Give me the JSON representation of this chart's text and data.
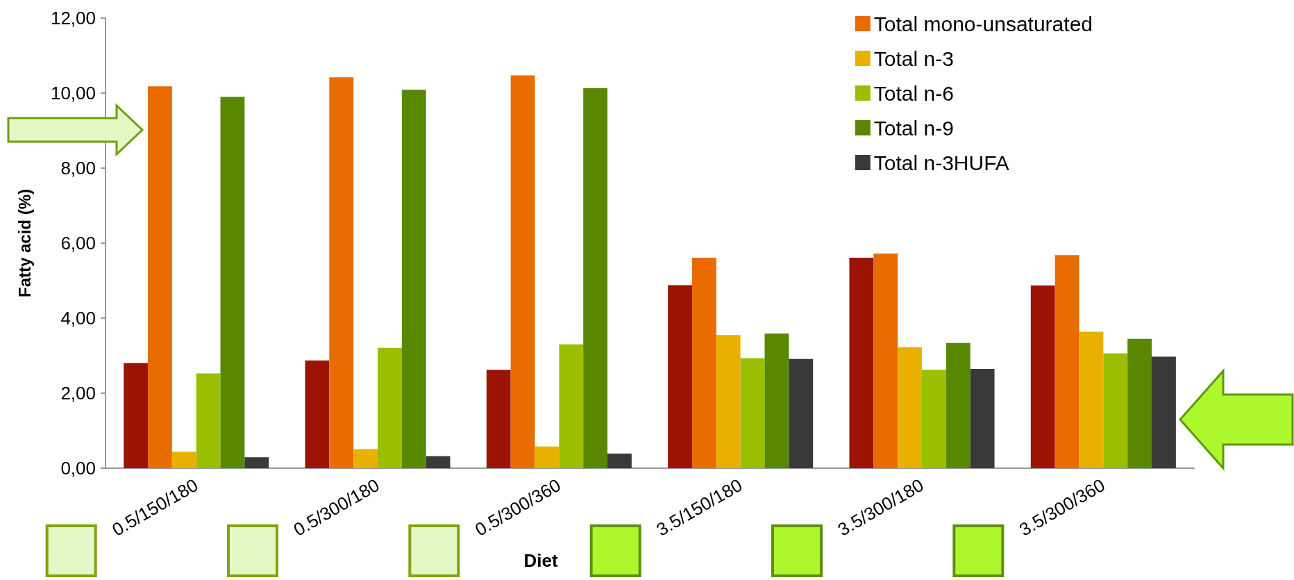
{
  "chart_data": {
    "type": "bar",
    "xlabel": "Diet",
    "ylabel": "Fatty acid (%)",
    "categories": [
      "0.5/150/180",
      "0.5/300/180",
      "0.5/300/360",
      "3.5/150/180",
      "3.5/300/180",
      "3.5/300/360"
    ],
    "series": [
      {
        "color": "#9b1403",
        "values": [
          2.8,
          2.87,
          2.62,
          4.88,
          5.61,
          4.87
        ]
      },
      {
        "name": "Total mono-unsaturated",
        "color": "#e96c00",
        "values": [
          10.18,
          10.42,
          10.47,
          5.61,
          5.72,
          5.68
        ]
      },
      {
        "name": "Total n-3",
        "color": "#e8b100",
        "values": [
          0.44,
          0.51,
          0.58,
          3.55,
          3.22,
          3.64
        ]
      },
      {
        "name": "Total n-6",
        "color": "#99bf00",
        "values": [
          2.53,
          3.21,
          3.3,
          2.93,
          2.62,
          3.06
        ]
      },
      {
        "name": "Total n-9",
        "color": "#598800",
        "values": [
          9.9,
          10.09,
          10.13,
          3.59,
          3.34,
          3.45
        ]
      },
      {
        "name": "Total n-3HUFA",
        "color": "#393939",
        "values": [
          0.29,
          0.32,
          0.39,
          2.91,
          2.65,
          2.97
        ]
      }
    ],
    "ylim": [
      0,
      12
    ],
    "yticks": [
      {
        "value": 0,
        "label": "0,00"
      },
      {
        "value": 2,
        "label": "2,00"
      },
      {
        "value": 4,
        "label": "4,00"
      },
      {
        "value": 6,
        "label": "6,00"
      },
      {
        "value": 8,
        "label": "8,00"
      },
      {
        "value": 10,
        "label": "10,00"
      },
      {
        "value": 12,
        "label": "12,00"
      }
    ],
    "legend": "top right"
  }
}
